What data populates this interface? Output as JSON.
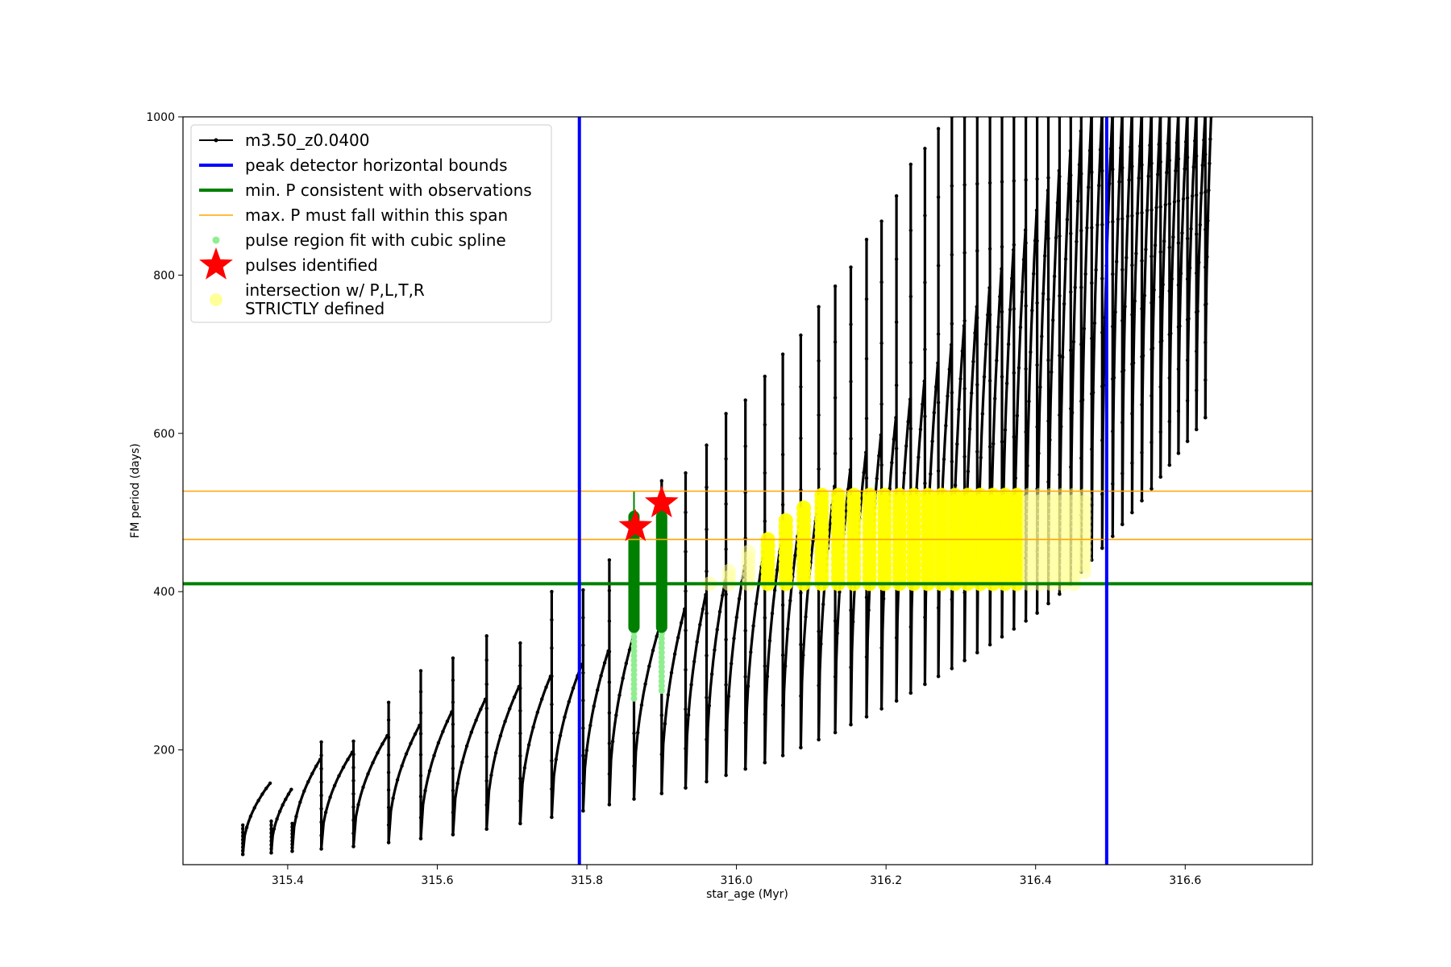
{
  "chart_data": {
    "type": "line",
    "xlabel": "star_age (Myr)",
    "ylabel": "FM period (days)",
    "xlim": [
      315.26,
      316.77
    ],
    "ylim": [
      55,
      1000
    ],
    "xticks": [
      315.4,
      315.6,
      315.8,
      316.0,
      316.2,
      316.4,
      316.6
    ],
    "yticks": [
      200,
      400,
      600,
      800,
      1000
    ],
    "grid": false,
    "legend_position": "upper-left",
    "colors": {
      "model": "#000000",
      "bounds": "#0000ff",
      "min_period": "#008000",
      "max_span": "#ffa500",
      "spline": "#90ee90",
      "pulses": "#ff0000",
      "intersection": "#ffff00"
    },
    "legend": [
      {
        "label": "m3.50_z0.0400",
        "marker": "line-dot",
        "color": "#000000"
      },
      {
        "label": "peak detector horizontal bounds",
        "marker": "thick-line",
        "color": "#0000ff"
      },
      {
        "label": "min. P consistent with observations",
        "marker": "thick-line",
        "color": "#008000"
      },
      {
        "label": "max. P must fall within this span",
        "marker": "thin-line",
        "color": "#ffa500"
      },
      {
        "label": "pulse region fit with cubic spline",
        "marker": "small-dot",
        "color": "#90ee90"
      },
      {
        "label": "pulses identified",
        "marker": "star",
        "color": "#ff0000"
      },
      {
        "label": "intersection w/ P,L,T,R",
        "label2": "STRICTLY defined",
        "marker": "big-dot",
        "color": "#ffff99"
      }
    ],
    "peak_detector_bounds": [
      315.79,
      316.495
    ],
    "min_period": 410,
    "max_period_span": [
      466,
      527
    ],
    "pulses_identified": [
      {
        "x": 315.865,
        "y": 482
      },
      {
        "x": 315.9,
        "y": 512
      }
    ],
    "model_track": {
      "name": "m3.50_z0.0400",
      "pulse_ages": [
        315.34,
        315.378,
        315.406,
        315.445,
        315.488,
        315.535,
        315.578,
        315.621,
        315.666,
        315.711,
        315.753,
        315.795,
        315.83,
        315.863,
        315.9,
        315.932,
        315.96,
        315.986,
        316.012,
        316.038,
        316.062,
        316.086,
        316.11,
        316.132,
        316.153,
        316.174,
        316.194,
        316.214,
        316.233,
        316.252,
        316.27,
        316.288,
        316.305,
        316.322,
        316.339,
        316.355,
        316.371,
        316.387,
        316.402,
        316.417,
        316.432,
        316.447,
        316.461,
        316.475,
        316.489,
        316.503,
        316.516,
        316.529,
        316.542,
        316.555,
        316.567,
        316.579,
        316.591,
        316.603,
        316.615,
        316.627
      ],
      "pulse_min_periods": [
        68,
        70,
        72,
        75,
        78,
        83,
        88,
        93,
        100,
        107,
        115,
        123,
        131,
        138,
        145,
        152,
        160,
        168,
        176,
        184,
        193,
        203,
        213,
        222,
        232,
        242,
        252,
        262,
        272,
        283,
        293,
        303,
        313,
        323,
        333,
        343,
        353,
        363,
        373,
        385,
        397,
        410,
        425,
        440,
        455,
        470,
        485,
        500,
        515,
        530,
        545,
        560,
        575,
        590,
        605,
        620
      ],
      "pulse_max_periods": [
        158,
        150,
        188,
        197,
        218,
        231,
        248,
        264,
        280,
        293,
        308,
        325,
        342,
        360,
        378,
        396,
        414,
        432,
        452,
        472,
        492,
        512,
        533,
        554,
        576,
        598,
        620,
        643,
        666,
        689,
        712,
        736,
        760,
        784,
        808,
        832,
        857,
        882,
        907,
        932,
        957,
        982,
        1000,
        1000,
        1000,
        1000,
        1000,
        1000,
        1000,
        1000,
        1000,
        1000,
        1000,
        1000,
        1000,
        1000
      ],
      "spike_peaks": [
        105,
        110,
        107,
        210,
        211,
        260,
        300,
        316,
        344,
        335,
        400,
        402,
        440,
        470,
        540,
        550,
        585,
        625,
        642,
        672,
        700,
        724,
        760,
        786,
        810,
        845,
        868,
        900,
        940,
        960,
        985,
        1000,
        1000,
        1000,
        1000,
        1000,
        1000,
        1000,
        1000,
        1000,
        1000,
        1000,
        1000,
        1000,
        1000,
        1000,
        1000,
        1000,
        1000,
        1000,
        1000,
        1000,
        1000,
        1000,
        1000,
        1000
      ]
    }
  }
}
